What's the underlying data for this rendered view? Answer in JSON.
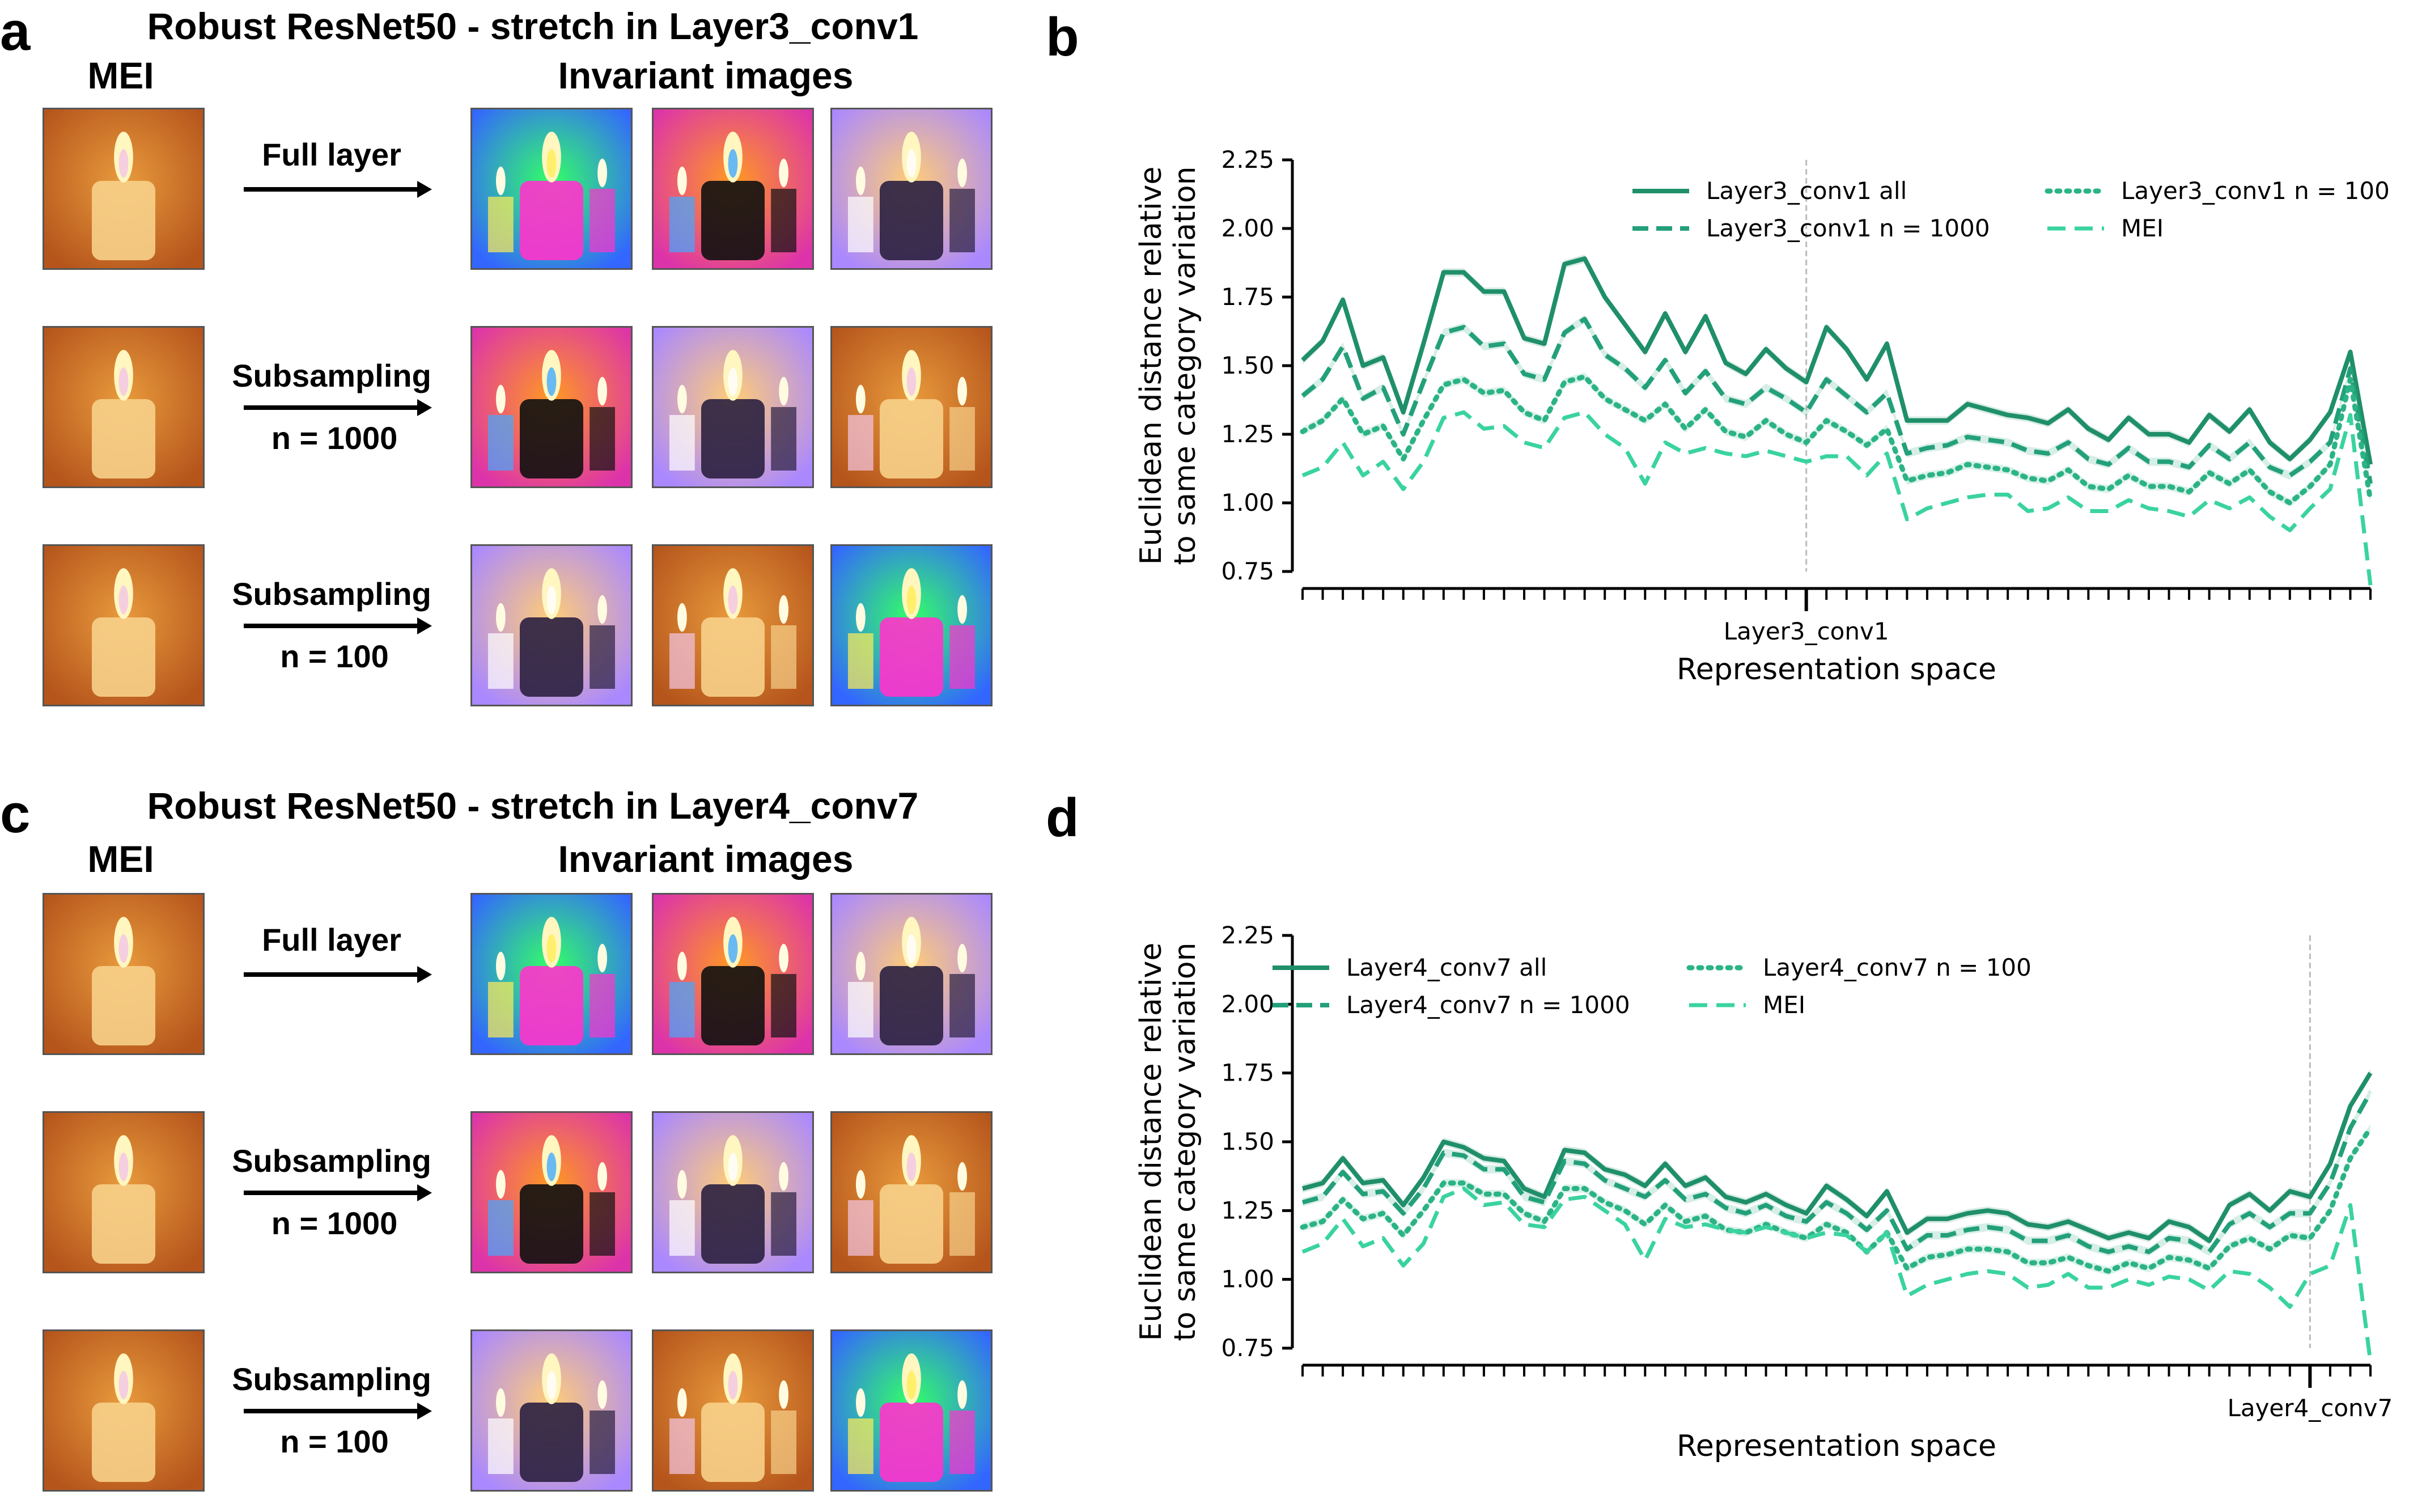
{
  "panels": {
    "a": {
      "letter": "a",
      "title": "Robust ResNet50 - stretch in Layer3_conv1",
      "mei_header": "MEI",
      "invariant_header": "Invariant images",
      "rows": [
        {
          "label_line1": "Full layer",
          "label_line2": ""
        },
        {
          "label_line1": "Subsampling",
          "label_line2": "n = 1000"
        },
        {
          "label_line1": "Subsampling",
          "label_line2": "n = 100"
        }
      ]
    },
    "c": {
      "letter": "c",
      "title": "Robust ResNet50 - stretch in Layer4_conv7",
      "mei_header": "MEI",
      "invariant_header": "Invariant images",
      "rows": [
        {
          "label_line1": "Full layer",
          "label_line2": ""
        },
        {
          "label_line1": "Subsampling",
          "label_line2": "n = 1000"
        },
        {
          "label_line1": "Subsampling",
          "label_line2": "n = 100"
        }
      ]
    },
    "b": {
      "letter": "b"
    },
    "d": {
      "letter": "d"
    }
  },
  "colors": {
    "all": "#1f8f6a",
    "n1000": "#23a07a",
    "n100": "#2bb386",
    "mei": "#3ad3a0",
    "marker_line": "#bbbbbb"
  },
  "chart_data": [
    {
      "id": "b",
      "type": "line",
      "title": "",
      "xlabel": "Representation space",
      "ylabel_line1": "Euclidean distance relative",
      "ylabel_line2": "to same category variation",
      "ylim": [
        0.75,
        2.25
      ],
      "yticks": [
        "0.75",
        "1.00",
        "1.25",
        "1.50",
        "1.75",
        "2.00",
        "2.25"
      ],
      "n_points": 54,
      "marker_index": 25,
      "marker_label": "Layer3_conv1",
      "series": [
        {
          "name": "Layer3_conv1 all",
          "style": "solid",
          "values": [
            1.52,
            1.59,
            1.74,
            1.5,
            1.53,
            1.33,
            1.58,
            1.84,
            1.84,
            1.77,
            1.77,
            1.6,
            1.58,
            1.87,
            1.89,
            1.75,
            1.65,
            1.55,
            1.69,
            1.55,
            1.68,
            1.51,
            1.47,
            1.56,
            1.49,
            1.44,
            1.64,
            1.56,
            1.45,
            1.58,
            1.3,
            1.3,
            1.3,
            1.36,
            1.34,
            1.32,
            1.31,
            1.29,
            1.34,
            1.27,
            1.23,
            1.31,
            1.25,
            1.25,
            1.22,
            1.32,
            1.26,
            1.34,
            1.22,
            1.16,
            1.23,
            1.33,
            1.55,
            1.14
          ]
        },
        {
          "name": "Layer3_conv1 n = 1000",
          "style": "dashed",
          "values": [
            1.39,
            1.45,
            1.57,
            1.38,
            1.42,
            1.25,
            1.44,
            1.62,
            1.64,
            1.57,
            1.58,
            1.47,
            1.45,
            1.62,
            1.67,
            1.54,
            1.49,
            1.42,
            1.52,
            1.4,
            1.48,
            1.38,
            1.36,
            1.42,
            1.38,
            1.33,
            1.45,
            1.39,
            1.33,
            1.4,
            1.18,
            1.2,
            1.21,
            1.24,
            1.23,
            1.22,
            1.19,
            1.18,
            1.22,
            1.16,
            1.14,
            1.2,
            1.15,
            1.15,
            1.13,
            1.21,
            1.16,
            1.22,
            1.13,
            1.1,
            1.15,
            1.22,
            1.49,
            1.07
          ]
        },
        {
          "name": "Layer3_conv1 n = 100",
          "style": "dotted",
          "values": [
            1.26,
            1.3,
            1.38,
            1.25,
            1.28,
            1.16,
            1.3,
            1.43,
            1.45,
            1.4,
            1.41,
            1.33,
            1.3,
            1.44,
            1.46,
            1.38,
            1.34,
            1.3,
            1.36,
            1.27,
            1.34,
            1.26,
            1.24,
            1.3,
            1.25,
            1.22,
            1.3,
            1.26,
            1.21,
            1.27,
            1.08,
            1.1,
            1.11,
            1.14,
            1.13,
            1.12,
            1.09,
            1.08,
            1.12,
            1.06,
            1.05,
            1.1,
            1.06,
            1.06,
            1.04,
            1.11,
            1.07,
            1.12,
            1.04,
            1.0,
            1.06,
            1.14,
            1.45,
            1.01
          ]
        },
        {
          "name": "MEI",
          "style": "mei",
          "values": [
            1.1,
            1.13,
            1.22,
            1.1,
            1.15,
            1.05,
            1.15,
            1.31,
            1.33,
            1.27,
            1.28,
            1.22,
            1.2,
            1.31,
            1.33,
            1.25,
            1.2,
            1.07,
            1.22,
            1.18,
            1.2,
            1.18,
            1.17,
            1.19,
            1.17,
            1.15,
            1.17,
            1.17,
            1.1,
            1.18,
            0.94,
            0.98,
            1.0,
            1.02,
            1.03,
            1.03,
            0.97,
            0.98,
            1.02,
            0.97,
            0.97,
            1.01,
            0.98,
            0.97,
            0.95,
            1.01,
            0.98,
            1.02,
            0.95,
            0.9,
            0.98,
            1.05,
            1.32,
            0.7
          ]
        }
      ],
      "legend_placement": "top"
    },
    {
      "id": "d",
      "type": "line",
      "title": "",
      "xlabel": "Representation space",
      "ylabel_line1": "Euclidean distance relative",
      "ylabel_line2": "to same category variation",
      "ylim": [
        0.75,
        2.25
      ],
      "yticks": [
        "0.75",
        "1.00",
        "1.25",
        "1.50",
        "1.75",
        "2.00",
        "2.25"
      ],
      "n_points": 54,
      "marker_index": 50,
      "marker_label": "Layer4_conv7",
      "series": [
        {
          "name": "Layer4_conv7 all",
          "style": "solid",
          "values": [
            1.33,
            1.35,
            1.44,
            1.35,
            1.36,
            1.27,
            1.37,
            1.5,
            1.48,
            1.44,
            1.43,
            1.33,
            1.3,
            1.47,
            1.46,
            1.4,
            1.38,
            1.34,
            1.42,
            1.34,
            1.37,
            1.3,
            1.28,
            1.31,
            1.27,
            1.24,
            1.34,
            1.29,
            1.23,
            1.32,
            1.17,
            1.22,
            1.22,
            1.24,
            1.25,
            1.24,
            1.2,
            1.19,
            1.21,
            1.18,
            1.15,
            1.17,
            1.15,
            1.21,
            1.19,
            1.14,
            1.27,
            1.31,
            1.25,
            1.32,
            1.3,
            1.42,
            1.63,
            1.75
          ]
        },
        {
          "name": "Layer4_conv7 n = 1000",
          "style": "dashed",
          "values": [
            1.28,
            1.3,
            1.39,
            1.31,
            1.32,
            1.24,
            1.33,
            1.46,
            1.45,
            1.4,
            1.4,
            1.3,
            1.28,
            1.43,
            1.42,
            1.36,
            1.33,
            1.3,
            1.36,
            1.29,
            1.31,
            1.26,
            1.24,
            1.27,
            1.23,
            1.21,
            1.28,
            1.24,
            1.18,
            1.25,
            1.11,
            1.16,
            1.16,
            1.18,
            1.19,
            1.18,
            1.14,
            1.14,
            1.16,
            1.12,
            1.1,
            1.12,
            1.1,
            1.15,
            1.14,
            1.1,
            1.2,
            1.24,
            1.19,
            1.24,
            1.24,
            1.35,
            1.55,
            1.68
          ]
        },
        {
          "name": "Layer4_conv7 n = 100",
          "style": "dotted",
          "values": [
            1.19,
            1.21,
            1.29,
            1.22,
            1.24,
            1.16,
            1.25,
            1.35,
            1.35,
            1.31,
            1.31,
            1.24,
            1.21,
            1.33,
            1.33,
            1.28,
            1.25,
            1.2,
            1.27,
            1.21,
            1.23,
            1.18,
            1.17,
            1.2,
            1.17,
            1.15,
            1.2,
            1.17,
            1.1,
            1.17,
            1.04,
            1.08,
            1.09,
            1.11,
            1.11,
            1.1,
            1.06,
            1.06,
            1.08,
            1.05,
            1.03,
            1.06,
            1.04,
            1.08,
            1.07,
            1.04,
            1.12,
            1.15,
            1.11,
            1.16,
            1.15,
            1.25,
            1.44,
            1.55
          ]
        },
        {
          "name": "MEI",
          "style": "mei",
          "values": [
            1.1,
            1.13,
            1.22,
            1.12,
            1.15,
            1.05,
            1.13,
            1.3,
            1.33,
            1.27,
            1.28,
            1.2,
            1.19,
            1.29,
            1.3,
            1.25,
            1.2,
            1.07,
            1.22,
            1.19,
            1.2,
            1.18,
            1.17,
            1.19,
            1.17,
            1.15,
            1.17,
            1.16,
            1.1,
            1.17,
            0.94,
            0.98,
            1.0,
            1.02,
            1.03,
            1.02,
            0.97,
            0.98,
            1.02,
            0.97,
            0.97,
            1.0,
            0.98,
            1.01,
            1.0,
            0.96,
            1.03,
            1.02,
            0.97,
            0.9,
            1.02,
            1.05,
            1.27,
            0.7
          ]
        }
      ],
      "legend_placement": "top-left"
    }
  ]
}
